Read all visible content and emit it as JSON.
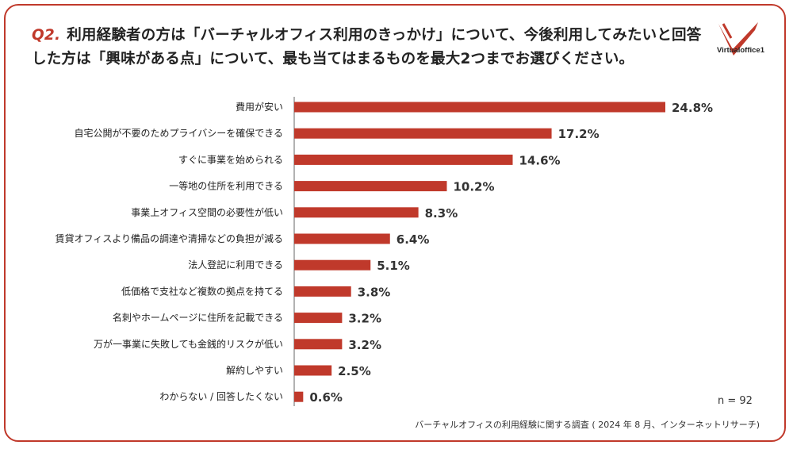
{
  "question": {
    "number": "Q2.",
    "text": "利用経験者の方は「バーチャルオフィス利用のきっかけ」について、今後利用してみたいと回答した方は「興味がある点」について、最も当てはまるものを最大2つまでお選びください。"
  },
  "logo": {
    "name": "Virtualoffice1"
  },
  "colors": {
    "bar": "#c0392b",
    "accent": "#c0392b"
  },
  "chart_data": {
    "type": "bar",
    "orientation": "horizontal",
    "categories": [
      "費用が安い",
      "自宅公開が不要のためプライバシーを確保できる",
      "すぐに事業を始められる",
      "一等地の住所を利用できる",
      "事業上オフィス空間の必要性が低い",
      "賃貸オフィスより備品の調達や清掃などの負担が減る",
      "法人登記に利用できる",
      "低価格で支社など複数の拠点を持てる",
      "名刺やホームページに住所を記載できる",
      "万が一事業に失敗しても金銭的リスクが低い",
      "解約しやすい",
      "わからない / 回答したくない"
    ],
    "values": [
      24.8,
      17.2,
      14.6,
      10.2,
      8.3,
      6.4,
      5.1,
      3.8,
      3.2,
      3.2,
      2.5,
      0.6
    ],
    "value_labels": [
      "24.8%",
      "17.2%",
      "14.6%",
      "10.2%",
      "8.3%",
      "6.4%",
      "5.1%",
      "3.8%",
      "3.2%",
      "3.2%",
      "2.5%",
      "0.6%"
    ],
    "unit": "%",
    "xlim": [
      0,
      30
    ],
    "gridlines": false,
    "legend": "none"
  },
  "sample": "n = 92",
  "source": "バーチャルオフィスの利用経験に関する調査 ( 2024 年 8 月、インターネットリサーチ)"
}
